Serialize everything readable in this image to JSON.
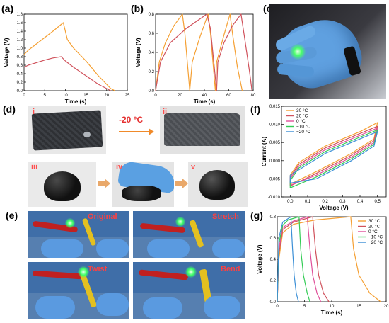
{
  "panels": {
    "a": "(a)",
    "b": "(b)",
    "c": "(c)",
    "d": "(d)",
    "e": "(e)",
    "f": "(f)",
    "g": "(g)"
  },
  "photo_d": {
    "labels": [
      "i",
      "ii",
      "iii",
      "iv",
      "v"
    ],
    "arrow_text": "-20 °C"
  },
  "photo_e": {
    "labels": [
      "Original",
      "Stretch",
      "Twist",
      "Bend"
    ]
  },
  "colors": {
    "orange": "#f5a033",
    "red": "#d0525c",
    "pink": "#e0509a",
    "green": "#33cc55",
    "blue": "#3b8fd6"
  },
  "chart_data": [
    {
      "id": "a",
      "type": "line",
      "xlabel": "Time (s)",
      "ylabel": "Voltage (V)",
      "xlim": [
        0,
        25
      ],
      "ylim": [
        0,
        1.8
      ],
      "xticks": [
        0,
        5,
        10,
        15,
        20,
        25
      ],
      "yticks": [
        0.0,
        0.2,
        0.4,
        0.6,
        0.8,
        1.0,
        1.2,
        1.4,
        1.6,
        1.8
      ],
      "series": [
        {
          "color": "#f5a033",
          "points": [
            [
              0,
              0.85
            ],
            [
              1,
              0.95
            ],
            [
              3,
              1.1
            ],
            [
              5,
              1.25
            ],
            [
              7,
              1.4
            ],
            [
              9.5,
              1.6
            ],
            [
              10.5,
              1.2
            ],
            [
              12,
              1.0
            ],
            [
              15,
              0.7
            ],
            [
              18,
              0.35
            ],
            [
              21,
              0.05
            ],
            [
              22,
              0.0
            ]
          ]
        },
        {
          "color": "#d0525c",
          "points": [
            [
              0,
              0.55
            ],
            [
              1,
              0.6
            ],
            [
              3,
              0.66
            ],
            [
              5,
              0.72
            ],
            [
              7,
              0.77
            ],
            [
              9,
              0.8
            ],
            [
              10,
              0.7
            ],
            [
              12,
              0.55
            ],
            [
              15,
              0.35
            ],
            [
              18,
              0.15
            ],
            [
              20,
              0.05
            ],
            [
              21,
              0.0
            ]
          ]
        }
      ]
    },
    {
      "id": "b",
      "type": "line",
      "xlabel": "Time (s)",
      "ylabel": "Voltage (V)",
      "xlim": [
        0,
        80
      ],
      "ylim": [
        0,
        0.8
      ],
      "xticks": [
        0,
        20,
        40,
        60,
        80
      ],
      "yticks": [
        0.0,
        0.2,
        0.4,
        0.6,
        0.8
      ],
      "series": [
        {
          "color": "#f5a033",
          "points": [
            [
              0,
              0
            ],
            [
              3,
              0.3
            ],
            [
              8,
              0.5
            ],
            [
              15,
              0.68
            ],
            [
              22,
              0.8
            ],
            [
              24,
              0.6
            ],
            [
              28,
              0.0
            ],
            [
              30,
              0.3
            ],
            [
              36,
              0.55
            ],
            [
              43,
              0.8
            ],
            [
              45,
              0.6
            ],
            [
              49,
              0.0
            ],
            [
              50,
              0.3
            ],
            [
              56,
              0.58
            ],
            [
              61,
              0.8
            ],
            [
              63,
              0.6
            ],
            [
              67,
              0.25
            ],
            [
              71,
              0.0
            ]
          ]
        },
        {
          "color": "#d0525c",
          "points": [
            [
              0,
              0
            ],
            [
              4,
              0.3
            ],
            [
              12,
              0.5
            ],
            [
              25,
              0.65
            ],
            [
              42,
              0.8
            ],
            [
              45,
              0.65
            ],
            [
              50,
              0.0
            ],
            [
              51,
              0.3
            ],
            [
              56,
              0.5
            ],
            [
              63,
              0.68
            ],
            [
              70,
              0.8
            ],
            [
              73,
              0.55
            ],
            [
              77,
              0.2
            ],
            [
              79,
              0.0
            ]
          ]
        }
      ]
    },
    {
      "id": "f",
      "type": "line",
      "xlabel": "Voltage (V)",
      "ylabel": "Current (A)",
      "xlim": [
        -0.05,
        0.55
      ],
      "ylim": [
        -0.01,
        0.015
      ],
      "xticks": [
        0.0,
        0.1,
        0.2,
        0.3,
        0.4,
        0.5
      ],
      "yticks": [
        -0.01,
        -0.005,
        0.0,
        0.005,
        0.01,
        0.015
      ],
      "legend": [
        "30 °C",
        "20 °C",
        "0 °C",
        "−10 °C",
        "−20 °C"
      ],
      "series": [
        {
          "name": "30 °C",
          "color": "#f5a033",
          "points": [
            [
              0,
              -0.004
            ],
            [
              0.05,
              -0.0005
            ],
            [
              0.2,
              0.004
            ],
            [
              0.4,
              0.008
            ],
            [
              0.5,
              0.0105
            ],
            [
              0.48,
              0.006
            ],
            [
              0.35,
              0.002
            ],
            [
              0.15,
              -0.003
            ],
            [
              0,
              -0.0065
            ],
            [
              0,
              -0.004
            ]
          ]
        },
        {
          "name": "20 °C",
          "color": "#d0525c",
          "points": [
            [
              0,
              -0.0045
            ],
            [
              0.05,
              -0.001
            ],
            [
              0.2,
              0.0035
            ],
            [
              0.4,
              0.0075
            ],
            [
              0.5,
              0.0095
            ],
            [
              0.48,
              0.0055
            ],
            [
              0.35,
              0.0015
            ],
            [
              0.15,
              -0.0035
            ],
            [
              0,
              -0.007
            ],
            [
              0,
              -0.0045
            ]
          ]
        },
        {
          "name": "0 °C",
          "color": "#e0509a",
          "points": [
            [
              0,
              -0.005
            ],
            [
              0.05,
              -0.0015
            ],
            [
              0.2,
              0.003
            ],
            [
              0.4,
              0.007
            ],
            [
              0.5,
              0.009
            ],
            [
              0.48,
              0.005
            ],
            [
              0.35,
              0.001
            ],
            [
              0.15,
              -0.004
            ],
            [
              0,
              -0.0068
            ],
            [
              0,
              -0.005
            ]
          ]
        },
        {
          "name": "−10 °C",
          "color": "#33cc55",
          "points": [
            [
              0,
              -0.0055
            ],
            [
              0.05,
              -0.002
            ],
            [
              0.2,
              0.0025
            ],
            [
              0.4,
              0.0065
            ],
            [
              0.5,
              0.0085
            ],
            [
              0.48,
              0.0045
            ],
            [
              0.35,
              0.0005
            ],
            [
              0.15,
              -0.0045
            ],
            [
              0,
              -0.0075
            ],
            [
              0,
              -0.0055
            ]
          ]
        },
        {
          "name": "−20 °C",
          "color": "#3b8fd6",
          "points": [
            [
              0,
              -0.004
            ],
            [
              0.05,
              -0.0025
            ],
            [
              0.2,
              0.002
            ],
            [
              0.4,
              0.006
            ],
            [
              0.5,
              0.008
            ],
            [
              0.48,
              0.004
            ],
            [
              0.35,
              0.0
            ],
            [
              0.15,
              -0.005
            ],
            [
              0,
              -0.0062
            ],
            [
              0,
              -0.004
            ]
          ]
        }
      ]
    },
    {
      "id": "g",
      "type": "line",
      "xlabel": "Time (s)",
      "ylabel": "Voltage (V)",
      "xlim": [
        0,
        20
      ],
      "ylim": [
        0,
        0.8
      ],
      "xticks": [
        0,
        5,
        10,
        15,
        20
      ],
      "yticks": [
        0.0,
        0.2,
        0.4,
        0.6,
        0.8
      ],
      "legend": [
        "30 °C",
        "20 °C",
        "0 °C",
        "−10 °C",
        "−20 °C"
      ],
      "series": [
        {
          "name": "30 °C",
          "color": "#f5a033",
          "points": [
            [
              0,
              0
            ],
            [
              0.3,
              0.4
            ],
            [
              1,
              0.65
            ],
            [
              3,
              0.73
            ],
            [
              7,
              0.77
            ],
            [
              13.5,
              0.8
            ],
            [
              14,
              0.5
            ],
            [
              15,
              0.25
            ],
            [
              17,
              0.08
            ],
            [
              19,
              0.0
            ]
          ]
        },
        {
          "name": "20 °C",
          "color": "#d0525c",
          "points": [
            [
              0,
              0
            ],
            [
              0.3,
              0.45
            ],
            [
              1,
              0.68
            ],
            [
              3,
              0.75
            ],
            [
              6.5,
              0.8
            ],
            [
              7,
              0.5
            ],
            [
              7.6,
              0.25
            ],
            [
              8.5,
              0.08
            ],
            [
              9.5,
              0.0
            ]
          ]
        },
        {
          "name": "0 °C",
          "color": "#e0509a",
          "points": [
            [
              0,
              0
            ],
            [
              0.3,
              0.5
            ],
            [
              1,
              0.7
            ],
            [
              3,
              0.76
            ],
            [
              5.5,
              0.8
            ],
            [
              6,
              0.5
            ],
            [
              6.5,
              0.25
            ],
            [
              7.3,
              0.08
            ],
            [
              8,
              0.0
            ]
          ]
        },
        {
          "name": "−10 °C",
          "color": "#33cc55",
          "points": [
            [
              0,
              0
            ],
            [
              0.3,
              0.55
            ],
            [
              1,
              0.72
            ],
            [
              2,
              0.77
            ],
            [
              4,
              0.8
            ],
            [
              4.3,
              0.5
            ],
            [
              4.8,
              0.25
            ],
            [
              5.5,
              0.08
            ],
            [
              6,
              0.0
            ]
          ]
        },
        {
          "name": "−20 °C",
          "color": "#3b8fd6",
          "points": [
            [
              0,
              0
            ],
            [
              0.3,
              0.6
            ],
            [
              1,
              0.75
            ],
            [
              2.5,
              0.8
            ],
            [
              2.8,
              0.5
            ],
            [
              3.1,
              0.25
            ],
            [
              3.5,
              0.08
            ],
            [
              3.9,
              0.0
            ]
          ]
        }
      ]
    }
  ]
}
